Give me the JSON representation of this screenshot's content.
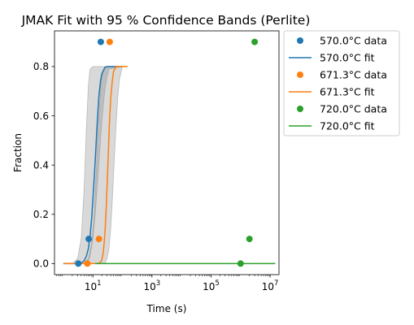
{
  "chart_data": {
    "type": "line",
    "title": "JMAK Fit with 95 % Confidence Bands (Perlite)",
    "xlabel": "Time (s)",
    "ylabel": "Fraction",
    "xscale": "log",
    "xlim": [
      0.5,
      20000000
    ],
    "ylim": [
      -0.045,
      0.945
    ],
    "xticks": [
      {
        "value": 10,
        "base": "10",
        "exp": "1"
      },
      {
        "value": 1000,
        "base": "10",
        "exp": "3"
      },
      {
        "value": 100000,
        "base": "10",
        "exp": "5"
      },
      {
        "value": 10000000,
        "base": "10",
        "exp": "7"
      }
    ],
    "yticks": [
      {
        "value": 0.0,
        "label": "0.0"
      },
      {
        "value": 0.2,
        "label": "0.2"
      },
      {
        "value": 0.4,
        "label": "0.4"
      },
      {
        "value": 0.6,
        "label": "0.6"
      },
      {
        "value": 0.8,
        "label": "0.8"
      }
    ],
    "grid": false,
    "legend_position": "outside-right",
    "series": [
      {
        "name": "570.0°C data",
        "kind": "scatter",
        "color": "#1f77b4",
        "x": [
          3.2,
          7.2,
          18.5
        ],
        "y": [
          0.0,
          0.1,
          0.9
        ]
      },
      {
        "name": "570.0°C fit",
        "kind": "line",
        "color": "#1f77b4",
        "x": [
          1,
          2,
          3,
          4,
          5,
          6,
          7,
          8,
          9,
          10,
          11,
          12,
          13,
          14,
          15,
          16,
          18,
          20,
          25,
          30,
          40,
          60,
          100
        ],
        "y": [
          0.0,
          0.0,
          0.0,
          0.002,
          0.01,
          0.03,
          0.06,
          0.11,
          0.18,
          0.26,
          0.34,
          0.42,
          0.5,
          0.57,
          0.63,
          0.68,
          0.74,
          0.77,
          0.795,
          0.8,
          0.8,
          0.8,
          0.8
        ],
        "band_lower_x": [
          1,
          3,
          4,
          5,
          6,
          7,
          8,
          10,
          12,
          15,
          18,
          20,
          25,
          30,
          35,
          100
        ],
        "band_lower_y": [
          0.0,
          0.0,
          0.0,
          0.0,
          0.0,
          0.01,
          0.03,
          0.1,
          0.2,
          0.36,
          0.5,
          0.58,
          0.7,
          0.76,
          0.79,
          0.8
        ],
        "band_upper_x": [
          1,
          2,
          3,
          4,
          5,
          6,
          7,
          8,
          10,
          100
        ],
        "band_upper_y": [
          0.0,
          0.0,
          0.02,
          0.1,
          0.3,
          0.55,
          0.72,
          0.79,
          0.8,
          0.8
        ]
      },
      {
        "name": "671.3°C data",
        "kind": "scatter",
        "color": "#ff7f0e",
        "x": [
          6.5,
          16,
          37
        ],
        "y": [
          0.0,
          0.1,
          0.9
        ]
      },
      {
        "name": "671.3°C fit",
        "kind": "line",
        "color": "#ff7f0e",
        "x": [
          1,
          5,
          10,
          15,
          18,
          20,
          22,
          24,
          26,
          28,
          30,
          33,
          36,
          40,
          45,
          50,
          60,
          70,
          100,
          150
        ],
        "y": [
          0.0,
          0.0,
          0.0,
          0.0,
          0.005,
          0.015,
          0.04,
          0.08,
          0.14,
          0.22,
          0.31,
          0.44,
          0.56,
          0.67,
          0.74,
          0.78,
          0.8,
          0.8,
          0.8,
          0.8
        ],
        "band_lower_x": [
          1,
          10,
          20,
          25,
          30,
          35,
          40,
          45,
          50,
          60,
          70,
          80,
          100,
          150
        ],
        "band_lower_y": [
          0.0,
          0.0,
          0.0,
          0.0,
          0.02,
          0.06,
          0.14,
          0.25,
          0.36,
          0.55,
          0.68,
          0.75,
          0.8,
          0.8
        ],
        "band_upper_x": [
          1,
          5,
          7,
          9,
          11,
          13,
          15,
          18,
          20,
          25,
          150
        ],
        "band_upper_y": [
          0.0,
          0.0,
          0.02,
          0.08,
          0.2,
          0.38,
          0.55,
          0.7,
          0.76,
          0.8,
          0.8
        ]
      },
      {
        "name": "720.0°C data",
        "kind": "scatter",
        "color": "#2ca02c",
        "x": [
          1000000,
          2000000,
          3000000
        ],
        "y": [
          0.0,
          0.1,
          0.9
        ]
      },
      {
        "name": "720.0°C fit",
        "kind": "line",
        "color": "#2ca02c",
        "x": [
          12,
          15000000
        ],
        "y": [
          0.0,
          0.0
        ]
      }
    ]
  }
}
